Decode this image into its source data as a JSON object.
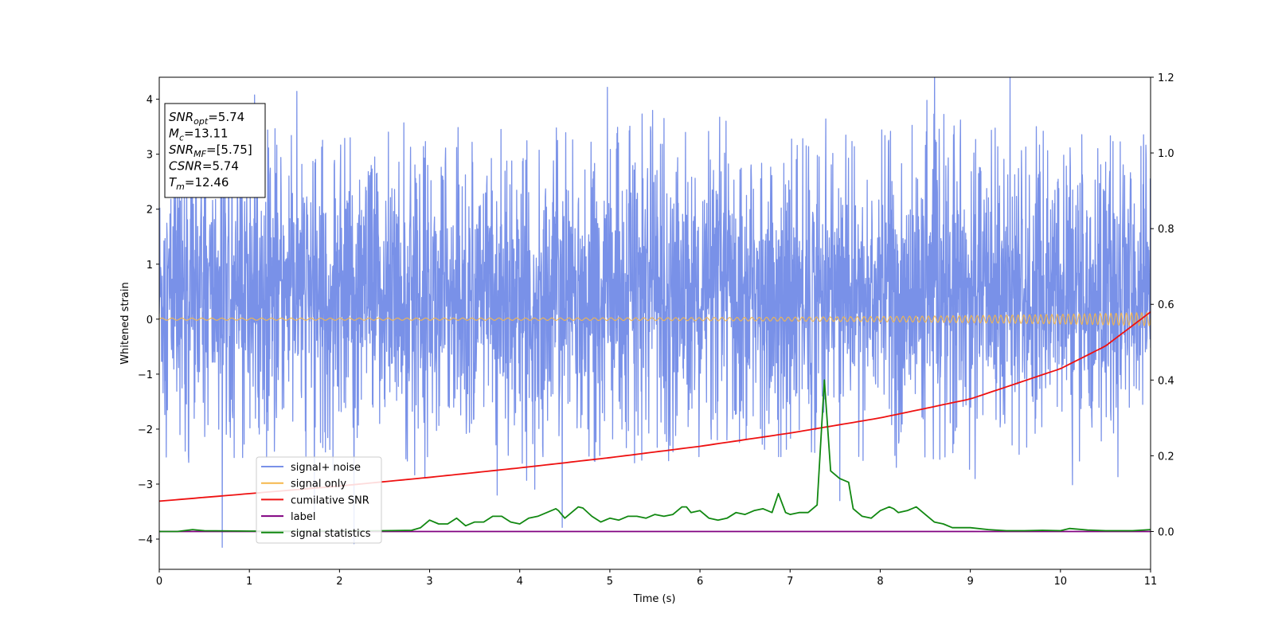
{
  "chart_data": {
    "type": "line",
    "xlabel": "Time (s)",
    "ylabel": "Whitened strain",
    "xlim": [
      0,
      11
    ],
    "ylim": [
      -4.55,
      4.4
    ],
    "y2lim": [
      -0.1,
      1.2
    ],
    "x_ticks": [
      "0",
      "1",
      "2",
      "3",
      "4",
      "5",
      "6",
      "7",
      "8",
      "9",
      "10",
      "11"
    ],
    "y_ticks": [
      "4",
      "3",
      "2",
      "1",
      "0",
      "−1",
      "−2",
      "−3",
      "−4"
    ],
    "y2_ticks": [
      "1.2",
      "1.0",
      "0.8",
      "0.6",
      "0.4",
      "0.2",
      "0.0"
    ],
    "grid": false,
    "legend_position": "lower-left",
    "stats_box": [
      {
        "main": "SNR",
        "sub": "opt",
        "rest": "=5.74"
      },
      {
        "main": "M",
        "sub": "c",
        "rest": "=13.11"
      },
      {
        "main": "SNR",
        "sub": "MF",
        "rest": "=[5.75]"
      },
      {
        "main": "CSNR",
        "sub": "",
        "rest": "=5.74"
      },
      {
        "main": "T",
        "sub": "m",
        "rest": "=12.46"
      }
    ],
    "series": [
      {
        "name": "signal+ noise",
        "color": "#7991e8",
        "axis": "left",
        "kind": "noise",
        "typical_range": [
          -1.6,
          2.5
        ],
        "extremes": [
          {
            "x": 0.7,
            "y": -4.15
          },
          {
            "x": 5.6,
            "y": 3.65
          },
          {
            "x": 5.45,
            "y": 3.5
          },
          {
            "x": 8.52,
            "y": 3.98
          },
          {
            "x": 10.95,
            "y": 2.9
          },
          {
            "x": 4.42,
            "y": 3.25
          },
          {
            "x": 1.72,
            "y": -3.5
          },
          {
            "x": 3.75,
            "y": -3.2
          },
          {
            "x": 7.55,
            "y": -3.3
          }
        ]
      },
      {
        "name": "signal only",
        "color": "#f5b74a",
        "axis": "left",
        "kind": "chirp",
        "amplitude_start": 0.02,
        "amplitude_end": 0.12,
        "freq_start": 9,
        "freq_end": 18
      },
      {
        "name": "cumilative SNR",
        "color": "#ee1111",
        "axis": "right",
        "x": [
          0,
          1,
          2,
          3,
          4,
          5,
          6,
          7,
          8,
          9,
          10,
          10.5,
          11
        ],
        "y": [
          0.08,
          0.1,
          0.12,
          0.143,
          0.168,
          0.195,
          0.225,
          0.26,
          0.3,
          0.35,
          0.43,
          0.49,
          0.58
        ]
      },
      {
        "name": "label",
        "color": "#800080",
        "axis": "right",
        "x": [
          0,
          11
        ],
        "y": [
          0.0,
          0.0
        ]
      },
      {
        "name": "signal statistics",
        "color": "#118811",
        "axis": "right",
        "x": [
          0,
          0.2,
          0.37,
          0.5,
          1.0,
          1.5,
          2.0,
          2.5,
          2.8,
          2.9,
          3.0,
          3.1,
          3.2,
          3.3,
          3.4,
          3.5,
          3.6,
          3.7,
          3.8,
          3.9,
          4.0,
          4.1,
          4.2,
          4.3,
          4.4,
          4.43,
          4.5,
          4.6,
          4.65,
          4.7,
          4.8,
          4.9,
          5.0,
          5.1,
          5.2,
          5.3,
          5.4,
          5.5,
          5.6,
          5.7,
          5.8,
          5.85,
          5.9,
          6.0,
          6.1,
          6.2,
          6.3,
          6.4,
          6.5,
          6.6,
          6.7,
          6.8,
          6.87,
          6.95,
          7.0,
          7.1,
          7.2,
          7.3,
          7.38,
          7.45,
          7.55,
          7.65,
          7.7,
          7.8,
          7.9,
          8.0,
          8.1,
          8.15,
          8.2,
          8.3,
          8.4,
          8.5,
          8.6,
          8.7,
          8.8,
          8.9,
          9.0,
          9.2,
          9.4,
          9.6,
          9.8,
          10.0,
          10.1,
          10.3,
          10.5,
          10.8,
          11.0
        ],
        "y": [
          0,
          0,
          0.005,
          0.002,
          0.001,
          0.001,
          0.001,
          0.002,
          0.003,
          0.01,
          0.03,
          0.02,
          0.02,
          0.035,
          0.015,
          0.025,
          0.025,
          0.04,
          0.04,
          0.025,
          0.02,
          0.035,
          0.04,
          0.05,
          0.06,
          0.055,
          0.035,
          0.055,
          0.065,
          0.062,
          0.04,
          0.025,
          0.035,
          0.03,
          0.04,
          0.04,
          0.035,
          0.045,
          0.04,
          0.045,
          0.065,
          0.065,
          0.05,
          0.055,
          0.035,
          0.03,
          0.035,
          0.05,
          0.045,
          0.055,
          0.06,
          0.05,
          0.1,
          0.05,
          0.045,
          0.05,
          0.05,
          0.07,
          0.4,
          0.16,
          0.14,
          0.13,
          0.06,
          0.04,
          0.035,
          0.055,
          0.065,
          0.06,
          0.05,
          0.055,
          0.065,
          0.045,
          0.025,
          0.02,
          0.01,
          0.01,
          0.01,
          0.005,
          0.002,
          0.002,
          0.003,
          0.002,
          0.008,
          0.004,
          0.002,
          0.002,
          0.005
        ]
      }
    ]
  }
}
